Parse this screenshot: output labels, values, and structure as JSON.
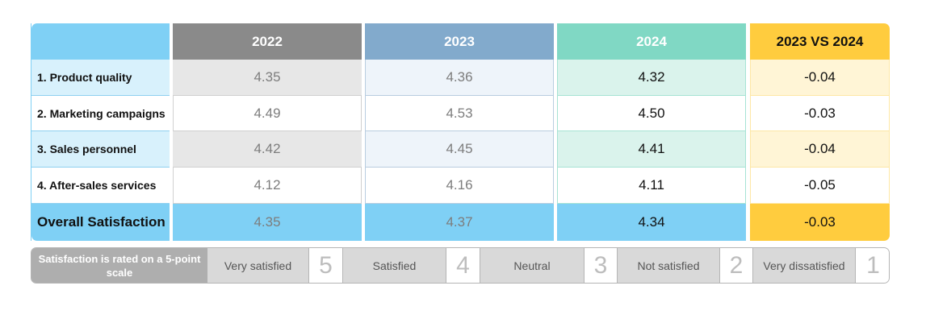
{
  "chart_data": {
    "type": "table",
    "columns": [
      "",
      "2022",
      "2023",
      "2024",
      "2023 VS 2024"
    ],
    "rows": [
      {
        "label": "1. Product quality",
        "values": [
          "4.35",
          "4.36",
          "4.32",
          "-0.04"
        ]
      },
      {
        "label": "2. Marketing campaigns",
        "values": [
          "4.49",
          "4.53",
          "4.50",
          "-0.03"
        ]
      },
      {
        "label": "3. Sales personnel",
        "values": [
          "4.42",
          "4.45",
          "4.41",
          "-0.04"
        ]
      },
      {
        "label": "4. After-sales services",
        "values": [
          "4.12",
          "4.16",
          "4.11",
          "-0.05"
        ]
      },
      {
        "label": "Overall Satisfaction",
        "values": [
          "4.35",
          "4.37",
          "4.34",
          "-0.03"
        ]
      }
    ]
  },
  "scale": {
    "title": "Satisfaction is rated on a 5-point scale",
    "levels": [
      {
        "label": "Very satisfied",
        "score": "5"
      },
      {
        "label": "Satisfied",
        "score": "4"
      },
      {
        "label": "Neutral",
        "score": "3"
      },
      {
        "label": "Not satisfied",
        "score": "2"
      },
      {
        "label": "Very dissatisfied",
        "score": "1"
      }
    ]
  },
  "colors": {
    "label_column": "#7fd0f5",
    "col_2022": "#8a8a8a",
    "col_2023": "#82aacc",
    "col_2024": "#80d8c4",
    "col_diff": "#ffcc3e"
  }
}
